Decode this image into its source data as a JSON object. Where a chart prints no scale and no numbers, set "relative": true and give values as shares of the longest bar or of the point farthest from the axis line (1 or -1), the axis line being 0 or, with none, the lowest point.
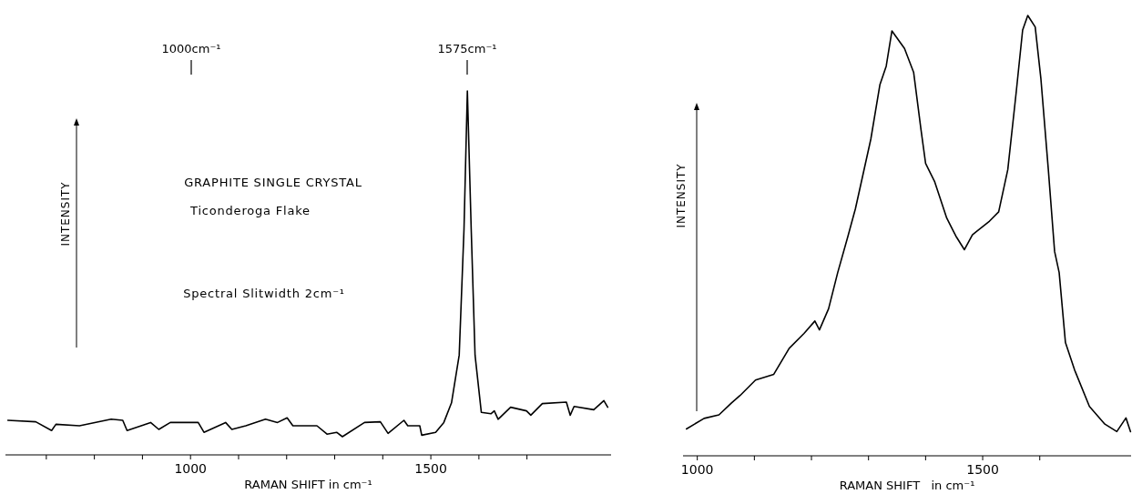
{
  "chart_data": [
    {
      "type": "line",
      "xlabel": "RAMAN SHIFT in cm⁻¹",
      "ylabel": "INTENSITY",
      "relative": true,
      "xlim": [
        615,
        1875
      ],
      "xticks": [
        {
          "value": 700,
          "label": null
        },
        {
          "value": 800,
          "label": null
        },
        {
          "value": 900,
          "label": null
        },
        {
          "value": 1000,
          "label": "1000"
        },
        {
          "value": 1100,
          "label": null
        },
        {
          "value": 1200,
          "label": null
        },
        {
          "value": 1300,
          "label": null
        },
        {
          "value": 1400,
          "label": null
        },
        {
          "value": 1500,
          "label": "1500"
        },
        {
          "value": 1600,
          "label": null
        },
        {
          "value": 1700,
          "label": null
        }
      ],
      "annotations": [
        "1000cm⁻¹",
        "1575cm⁻¹",
        "GRAPHITE SINGLE CRYSTAL",
        "Ticonderoga Flake",
        "Spectral Slitwidth 2cm⁻¹"
      ],
      "series": [
        {
          "color": "#000000",
          "x": [
            620,
            678,
            711,
            720,
            769,
            835,
            859,
            868,
            917,
            934,
            958,
            1016,
            1028,
            1073,
            1086,
            1115,
            1156,
            1181,
            1201,
            1213,
            1263,
            1284,
            1304,
            1316,
            1362,
            1395,
            1411,
            1444,
            1452,
            1477,
            1481,
            1510,
            1527,
            1543,
            1559,
            1569,
            1576,
            1584,
            1592,
            1605,
            1625,
            1632,
            1640,
            1666,
            1699,
            1708,
            1732,
            1782,
            1790,
            1798,
            1839,
            1860,
            1868
          ],
          "values": [
            0.095,
            0.091,
            0.067,
            0.084,
            0.08,
            0.098,
            0.095,
            0.067,
            0.089,
            0.07,
            0.089,
            0.089,
            0.062,
            0.089,
            0.07,
            0.08,
            0.098,
            0.089,
            0.102,
            0.08,
            0.08,
            0.057,
            0.062,
            0.05,
            0.089,
            0.091,
            0.059,
            0.095,
            0.08,
            0.08,
            0.054,
            0.062,
            0.089,
            0.143,
            0.274,
            0.62,
            1,
            0.62,
            0.274,
            0.117,
            0.113,
            0.121,
            0.098,
            0.131,
            0.121,
            0.109,
            0.141,
            0.145,
            0.109,
            0.133,
            0.124,
            0.149,
            0.131
          ]
        }
      ]
    },
    {
      "type": "line",
      "xlabel": "RAMAN SHIFT   in cm⁻¹",
      "ylabel": "INTENSITY",
      "relative": true,
      "xlim": [
        975,
        1760
      ],
      "xticks": [
        {
          "value": 1000,
          "label": "1000"
        },
        {
          "value": 1100,
          "label": null
        },
        {
          "value": 1200,
          "label": null
        },
        {
          "value": 1300,
          "label": null
        },
        {
          "value": 1400,
          "label": null
        },
        {
          "value": 1500,
          "label": "1500"
        },
        {
          "value": 1600,
          "label": null
        }
      ],
      "series": [
        {
          "color": "#000000",
          "x": [
            981,
            1012,
            1038,
            1060,
            1075,
            1102,
            1134,
            1161,
            1187,
            1206,
            1214,
            1230,
            1246,
            1264,
            1277,
            1304,
            1320,
            1331,
            1341,
            1363,
            1379,
            1392,
            1400,
            1416,
            1437,
            1453,
            1468,
            1482,
            1512,
            1528,
            1544,
            1559,
            1570,
            1579,
            1592,
            1602,
            1615,
            1626,
            1634,
            1645,
            1661,
            1687,
            1714,
            1735,
            1751,
            1759
          ],
          "values": [
            0.061,
            0.085,
            0.093,
            0.12,
            0.137,
            0.172,
            0.185,
            0.244,
            0.278,
            0.306,
            0.286,
            0.334,
            0.416,
            0.499,
            0.561,
            0.719,
            0.843,
            0.885,
            0.965,
            0.925,
            0.871,
            0.74,
            0.664,
            0.622,
            0.54,
            0.499,
            0.468,
            0.502,
            0.533,
            0.554,
            0.65,
            0.829,
            0.967,
            1,
            0.974,
            0.856,
            0.65,
            0.464,
            0.416,
            0.257,
            0.195,
            0.112,
            0.072,
            0.055,
            0.086,
            0.055
          ]
        }
      ]
    }
  ]
}
